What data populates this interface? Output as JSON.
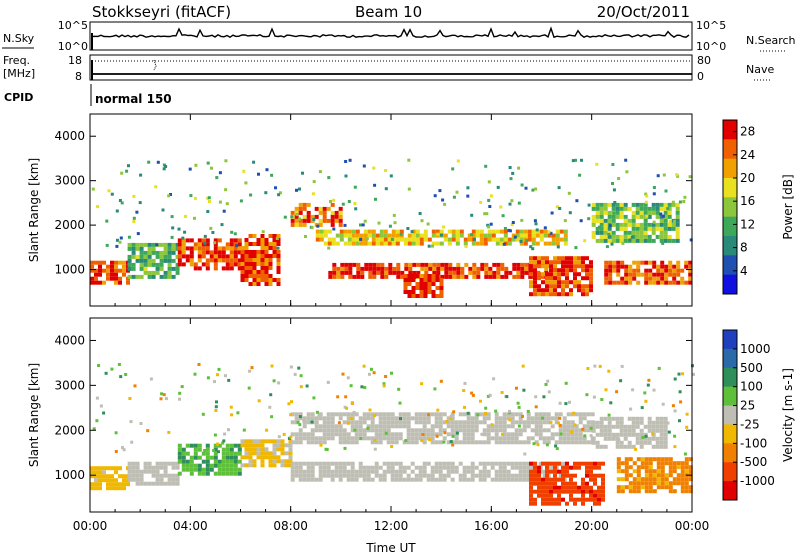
{
  "header": {
    "radar": "Stokkseyri (fitACF)",
    "beam": "Beam 10",
    "date": "20/Oct/2011"
  },
  "strips": {
    "nsky_label": "N.Sky",
    "nsky_ticks": [
      "10^5",
      "10^0"
    ],
    "nsearch_label": "N.Search",
    "nsearch_ticks": [
      "10^5",
      "10^0"
    ],
    "freq_label": "Freq.",
    "freq_unit": "[MHz]",
    "freq_ticks": [
      "18",
      "8"
    ],
    "nave_label": "Nave",
    "nave_ticks": [
      "80",
      "0"
    ],
    "cpid_label": "CPID",
    "cpid_value": "normal 150"
  },
  "colors": {
    "power_scale": [
      "#1010e0",
      "#1f4fb0",
      "#2a8a7a",
      "#3ea85a",
      "#8cc63a",
      "#e8e020",
      "#f0a000",
      "#f06000",
      "#e00000"
    ],
    "velocity_scale": [
      "#1f3fbf",
      "#2a6aa8",
      "#2f8f5a",
      "#5ec03a",
      "#bebeb4",
      "#f0b800",
      "#f08000",
      "#f04000",
      "#e00000"
    ],
    "ground_scatter": "#bebeb4"
  },
  "chart_data": [
    {
      "type": "heatmap",
      "title": "",
      "xlabel": "Time UT",
      "ylabel": "Slant Range [km]",
      "x_ticks": [
        "00:00",
        "04:00",
        "08:00",
        "12:00",
        "16:00",
        "20:00",
        "00:00"
      ],
      "y_ticks": [
        "1000",
        "2000",
        "3000",
        "4000"
      ],
      "ylim": [
        180,
        4500
      ],
      "colorbar": {
        "label": "Power [dB]",
        "ticks": [
          "4",
          "8",
          "12",
          "16",
          "20",
          "24",
          "28"
        ],
        "range": [
          0,
          30
        ]
      },
      "regions": [
        {
          "t_start": 0.0,
          "t_end": 1.5,
          "range_start": 700,
          "range_end": 1200,
          "value": 26
        },
        {
          "t_start": 1.5,
          "t_end": 3.5,
          "range_start": 800,
          "range_end": 1600,
          "value": 12
        },
        {
          "t_start": 3.5,
          "t_end": 6.0,
          "range_start": 1000,
          "range_end": 1700,
          "value": 27
        },
        {
          "t_start": 6.0,
          "t_end": 7.5,
          "range_start": 700,
          "range_end": 1800,
          "value": 26
        },
        {
          "t_start": 8.0,
          "t_end": 10.0,
          "range_start": 2000,
          "range_end": 2500,
          "value": 24
        },
        {
          "t_start": 9.0,
          "t_end": 19.0,
          "range_start": 1600,
          "range_end": 1900,
          "value": 20
        },
        {
          "t_start": 9.5,
          "t_end": 18.5,
          "range_start": 800,
          "range_end": 1150,
          "value": 27
        },
        {
          "t_start": 12.5,
          "t_end": 14.0,
          "range_start": 400,
          "range_end": 900,
          "value": 28
        },
        {
          "t_start": 17.5,
          "t_end": 20.0,
          "range_start": 450,
          "range_end": 1300,
          "value": 26
        },
        {
          "t_start": 20.0,
          "t_end": 23.5,
          "range_start": 1600,
          "range_end": 2500,
          "value": 14
        },
        {
          "t_start": 20.5,
          "t_end": 24.0,
          "range_start": 700,
          "range_end": 1200,
          "value": 26
        }
      ]
    },
    {
      "type": "heatmap",
      "title": "",
      "xlabel": "Time UT",
      "ylabel": "Slant Range [km]",
      "x_ticks": [
        "00:00",
        "04:00",
        "08:00",
        "12:00",
        "16:00",
        "20:00",
        "00:00"
      ],
      "y_ticks": [
        "1000",
        "2000",
        "3000",
        "4000"
      ],
      "ylim": [
        180,
        4500
      ],
      "colorbar": {
        "label": "Velocity [m s-1]",
        "ticks": [
          "1000",
          "500",
          "100",
          "25",
          "-25",
          "-100",
          "-500",
          "-1000"
        ],
        "range": [
          -1000,
          1000
        ]
      },
      "regions": [
        {
          "t_start": 0.0,
          "t_end": 1.5,
          "range_start": 700,
          "range_end": 1200,
          "value": -200
        },
        {
          "t_start": 1.5,
          "t_end": 3.5,
          "range_start": 800,
          "range_end": 1300,
          "value": 0
        },
        {
          "t_start": 3.5,
          "t_end": 6.0,
          "range_start": 1000,
          "range_end": 1700,
          "value": 300
        },
        {
          "t_start": 6.0,
          "t_end": 8.0,
          "range_start": 1200,
          "range_end": 1800,
          "value": -150
        },
        {
          "t_start": 8.0,
          "t_end": 20.0,
          "range_start": 1700,
          "range_end": 2400,
          "value": 0
        },
        {
          "t_start": 8.0,
          "t_end": 19.0,
          "range_start": 900,
          "range_end": 1300,
          "value": 0
        },
        {
          "t_start": 17.5,
          "t_end": 20.5,
          "range_start": 400,
          "range_end": 1300,
          "value": -700
        },
        {
          "t_start": 20.0,
          "t_end": 23.0,
          "range_start": 1600,
          "range_end": 2300,
          "value": 0
        },
        {
          "t_start": 21.0,
          "t_end": 24.0,
          "range_start": 600,
          "range_end": 1400,
          "value": -400
        }
      ]
    }
  ]
}
